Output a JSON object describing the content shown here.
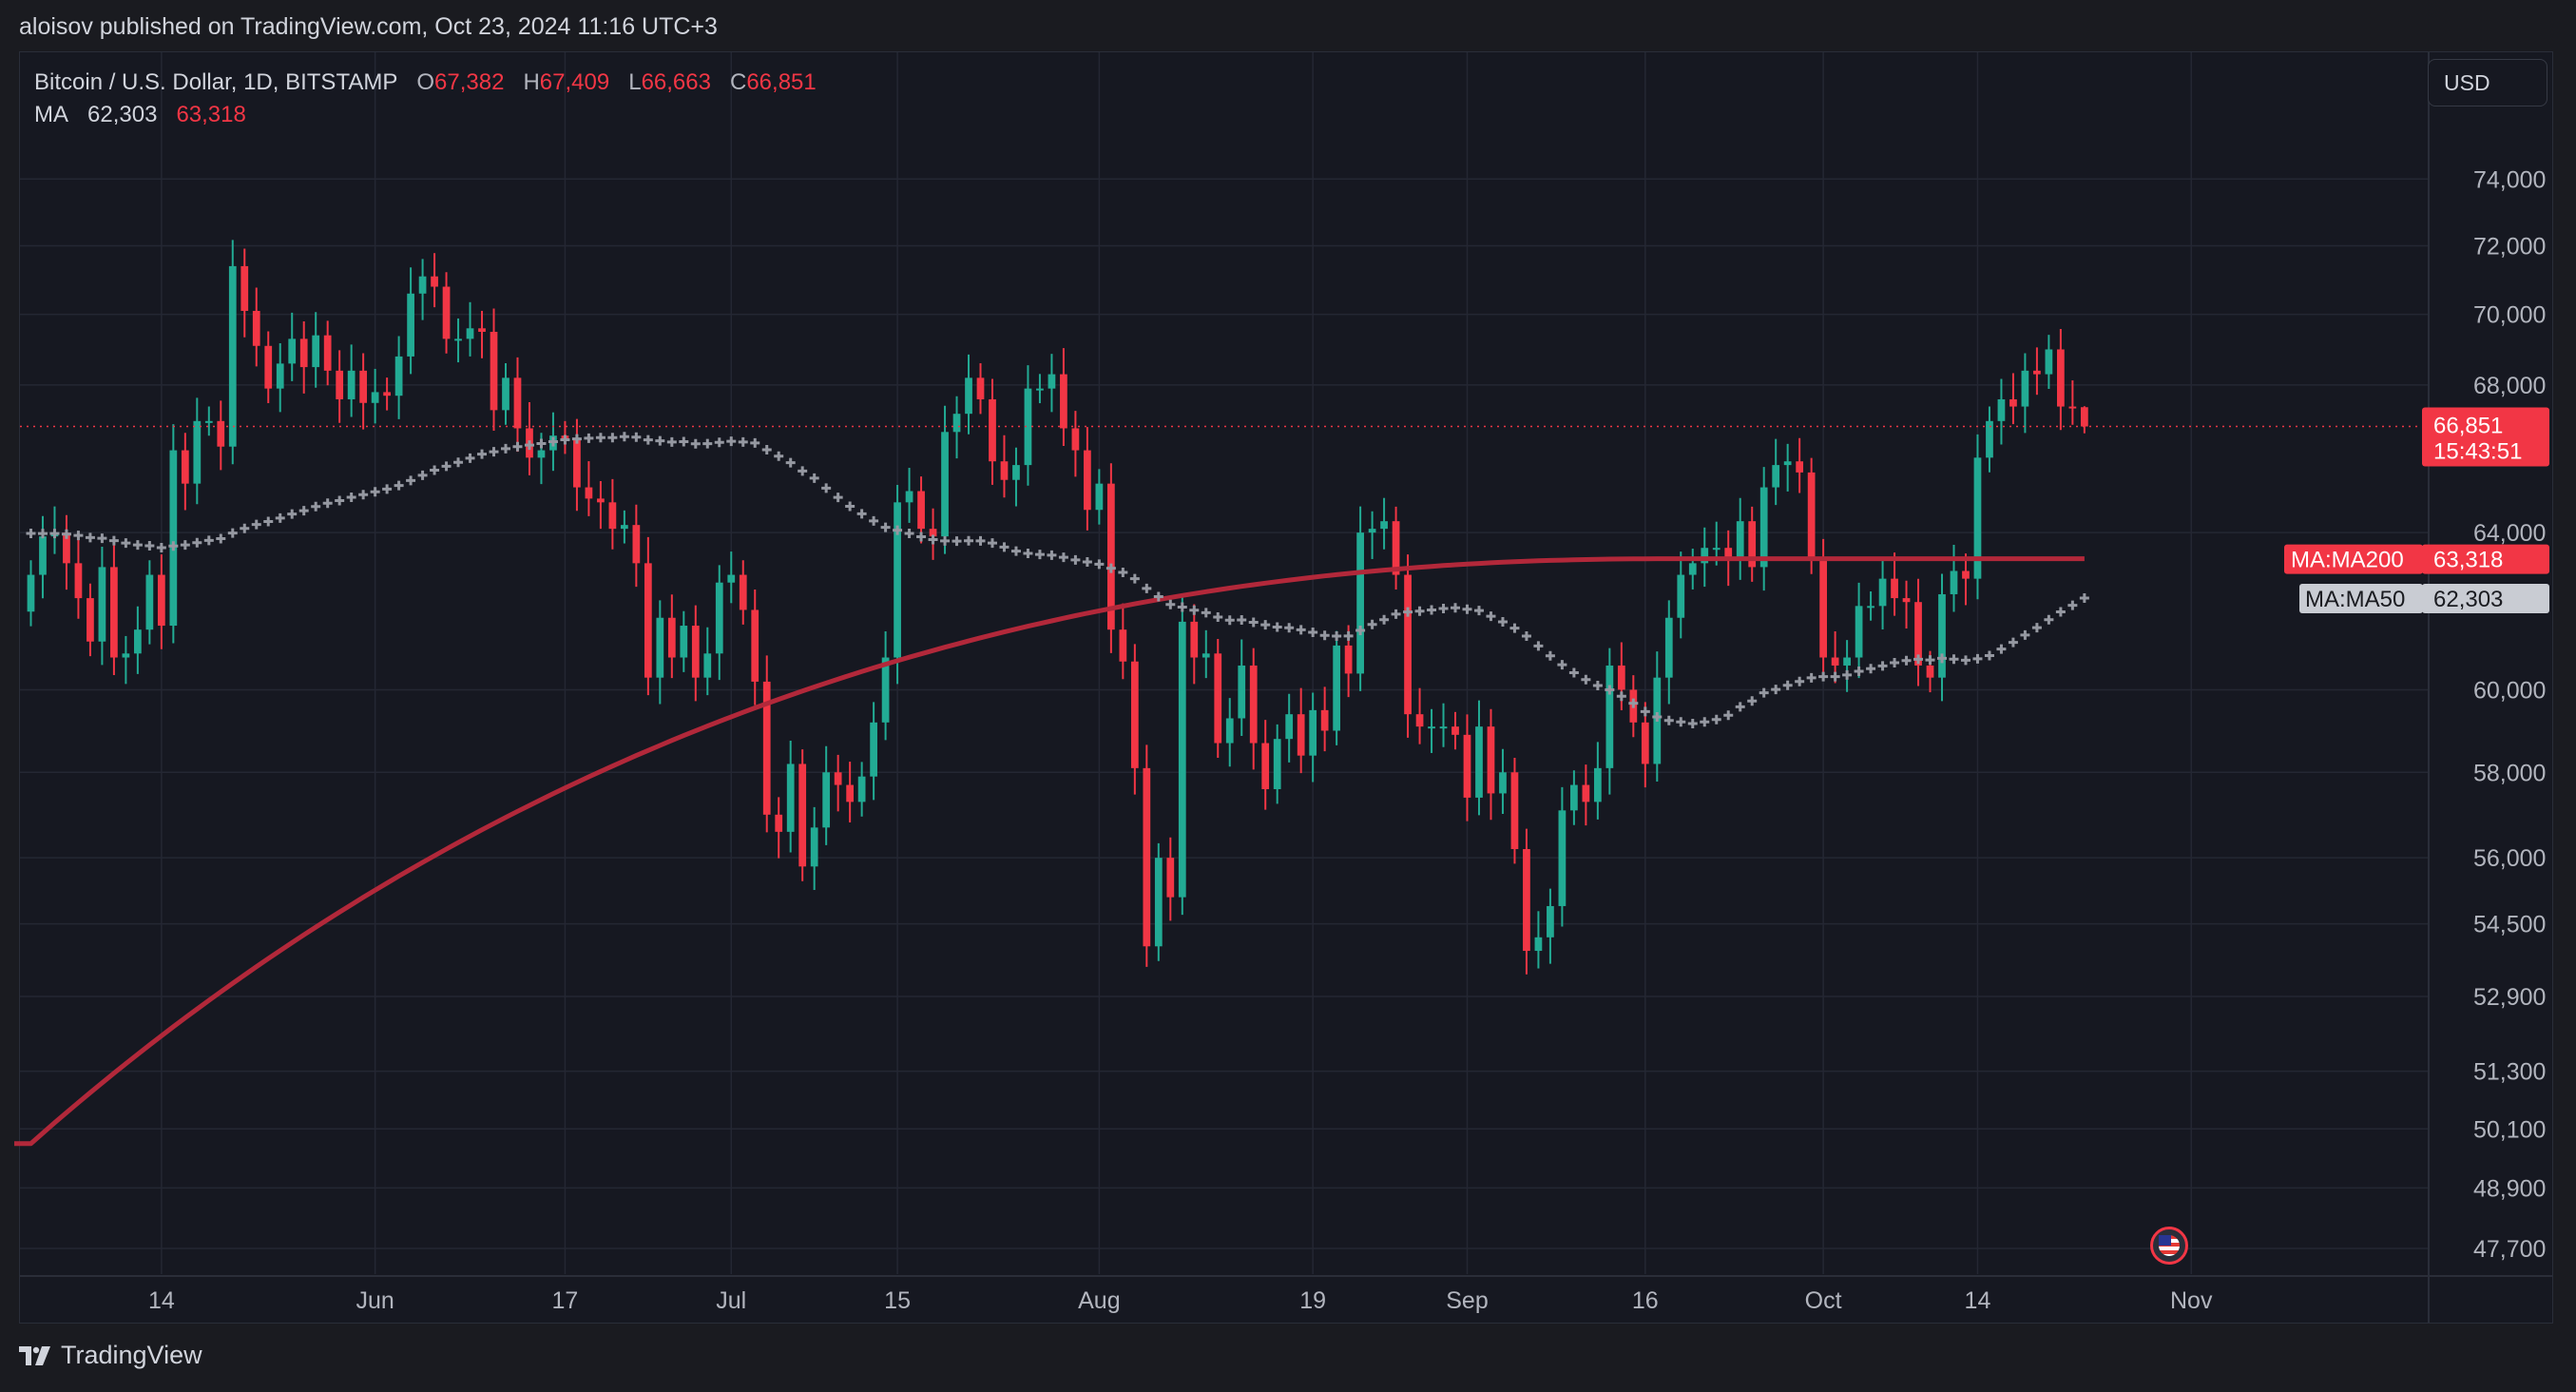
{
  "publisher": "aloisov published on TradingView.com, Oct 23, 2024 11:16 UTC+3",
  "legend": {
    "symbol": "Bitcoin / U.S. Dollar, 1D, BITSTAMP",
    "o_label": "O",
    "o": "67,382",
    "h_label": "H",
    "h": "67,409",
    "l_label": "L",
    "l": "66,663",
    "c_label": "C",
    "c": "66,851",
    "ma_label": "MA",
    "ma50": "62,303",
    "ma200": "63,318"
  },
  "currency": "USD",
  "brand": "TradingView",
  "colors": {
    "up": "#22ab94",
    "down": "#f23645",
    "ma200": "#b2283a",
    "ma50": "#9598a1"
  },
  "chart_data": {
    "type": "candlestick",
    "y_scale": "log",
    "ylim": [
      47200,
      76000
    ],
    "y_ticks": [
      {
        "label": "74,000",
        "value": 74000
      },
      {
        "label": "72,000",
        "value": 72000
      },
      {
        "label": "70,000",
        "value": 70000
      },
      {
        "label": "68,000",
        "value": 68000
      },
      {
        "label": "64,000",
        "value": 64000
      },
      {
        "label": "60,000",
        "value": 60000
      },
      {
        "label": "58,000",
        "value": 58000
      },
      {
        "label": "56,000",
        "value": 56000
      },
      {
        "label": "54,500",
        "value": 54500
      },
      {
        "label": "52,900",
        "value": 52900
      },
      {
        "label": "51,300",
        "value": 51300
      },
      {
        "label": "50,100",
        "value": 50100
      },
      {
        "label": "48,900",
        "value": 48900
      },
      {
        "label": "47,700",
        "value": 47700
      }
    ],
    "x_ticks": [
      {
        "label": "14",
        "date": "2024-05-14"
      },
      {
        "label": "Jun",
        "date": "2024-06-01"
      },
      {
        "label": "17",
        "date": "2024-06-17"
      },
      {
        "label": "Jul",
        "date": "2024-07-01"
      },
      {
        "label": "15",
        "date": "2024-07-15"
      },
      {
        "label": "Aug",
        "date": "2024-08-01"
      },
      {
        "label": "19",
        "date": "2024-08-19"
      },
      {
        "label": "Sep",
        "date": "2024-09-01"
      },
      {
        "label": "16",
        "date": "2024-09-16"
      },
      {
        "label": "Oct",
        "date": "2024-10-01"
      },
      {
        "label": "14",
        "date": "2024-10-14"
      },
      {
        "label": "Nov",
        "date": "2024-11-01"
      }
    ],
    "x_range": [
      "2024-05-02",
      "2024-11-21"
    ],
    "closes": [
      [
        "2024-05-03",
        62900
      ],
      [
        "2024-05-04",
        63900
      ],
      [
        "2024-05-05",
        64000
      ],
      [
        "2024-05-06",
        63200
      ],
      [
        "2024-05-07",
        62300
      ],
      [
        "2024-05-08",
        61200
      ],
      [
        "2024-05-09",
        63100
      ],
      [
        "2024-05-10",
        60800
      ],
      [
        "2024-05-11",
        60900
      ],
      [
        "2024-05-12",
        61500
      ],
      [
        "2024-05-13",
        62900
      ],
      [
        "2024-05-14",
        61600
      ],
      [
        "2024-05-15",
        66200
      ],
      [
        "2024-05-16",
        65300
      ],
      [
        "2024-05-17",
        67000
      ],
      [
        "2024-05-18",
        67000
      ],
      [
        "2024-05-19",
        66300
      ],
      [
        "2024-05-20",
        71400
      ],
      [
        "2024-05-21",
        70100
      ],
      [
        "2024-05-22",
        69100
      ],
      [
        "2024-05-23",
        67900
      ],
      [
        "2024-05-24",
        68600
      ],
      [
        "2024-05-25",
        69300
      ],
      [
        "2024-05-26",
        68500
      ],
      [
        "2024-05-27",
        69400
      ],
      [
        "2024-05-28",
        68400
      ],
      [
        "2024-05-29",
        67600
      ],
      [
        "2024-05-30",
        68400
      ],
      [
        "2024-05-31",
        67500
      ],
      [
        "2024-06-01",
        67800
      ],
      [
        "2024-06-02",
        67700
      ],
      [
        "2024-06-03",
        68800
      ],
      [
        "2024-06-04",
        70600
      ],
      [
        "2024-06-05",
        71100
      ],
      [
        "2024-06-06",
        70800
      ],
      [
        "2024-06-07",
        69300
      ],
      [
        "2024-06-08",
        69300
      ],
      [
        "2024-06-09",
        69600
      ],
      [
        "2024-06-10",
        69500
      ],
      [
        "2024-06-11",
        67300
      ],
      [
        "2024-06-12",
        68200
      ],
      [
        "2024-06-13",
        66800
      ],
      [
        "2024-06-14",
        66000
      ],
      [
        "2024-06-15",
        66200
      ],
      [
        "2024-06-16",
        66600
      ],
      [
        "2024-06-17",
        66500
      ],
      [
        "2024-06-18",
        65200
      ],
      [
        "2024-06-19",
        64900
      ],
      [
        "2024-06-20",
        64800
      ],
      [
        "2024-06-21",
        64100
      ],
      [
        "2024-06-22",
        64200
      ],
      [
        "2024-06-23",
        63200
      ],
      [
        "2024-06-24",
        60300
      ],
      [
        "2024-06-25",
        61800
      ],
      [
        "2024-06-26",
        60800
      ],
      [
        "2024-06-27",
        61600
      ],
      [
        "2024-06-28",
        60300
      ],
      [
        "2024-06-29",
        60900
      ],
      [
        "2024-06-30",
        62700
      ],
      [
        "2024-07-01",
        62900
      ],
      [
        "2024-07-02",
        62000
      ],
      [
        "2024-07-03",
        60200
      ],
      [
        "2024-07-04",
        57000
      ],
      [
        "2024-07-05",
        56600
      ],
      [
        "2024-07-06",
        58200
      ],
      [
        "2024-07-07",
        55800
      ],
      [
        "2024-07-08",
        56700
      ],
      [
        "2024-07-09",
        58000
      ],
      [
        "2024-07-10",
        57700
      ],
      [
        "2024-07-11",
        57300
      ],
      [
        "2024-07-12",
        57900
      ],
      [
        "2024-07-13",
        59200
      ],
      [
        "2024-07-14",
        60800
      ],
      [
        "2024-07-15",
        64800
      ],
      [
        "2024-07-16",
        65100
      ],
      [
        "2024-07-17",
        64100
      ],
      [
        "2024-07-18",
        63900
      ],
      [
        "2024-07-19",
        66700
      ],
      [
        "2024-07-20",
        67200
      ],
      [
        "2024-07-21",
        68200
      ],
      [
        "2024-07-22",
        67600
      ],
      [
        "2024-07-23",
        65900
      ],
      [
        "2024-07-24",
        65400
      ],
      [
        "2024-07-25",
        65800
      ],
      [
        "2024-07-26",
        67900
      ],
      [
        "2024-07-27",
        67900
      ],
      [
        "2024-07-28",
        68300
      ],
      [
        "2024-07-29",
        66800
      ],
      [
        "2024-07-30",
        66200
      ],
      [
        "2024-07-31",
        64600
      ],
      [
        "2024-08-01",
        65300
      ],
      [
        "2024-08-02",
        61500
      ],
      [
        "2024-08-03",
        60700
      ],
      [
        "2024-08-04",
        58100
      ],
      [
        "2024-08-05",
        54000
      ],
      [
        "2024-08-06",
        56000
      ],
      [
        "2024-08-07",
        55100
      ],
      [
        "2024-08-08",
        61700
      ],
      [
        "2024-08-09",
        60800
      ],
      [
        "2024-08-10",
        60900
      ],
      [
        "2024-08-11",
        58700
      ],
      [
        "2024-08-12",
        59300
      ],
      [
        "2024-08-13",
        60600
      ],
      [
        "2024-08-14",
        58700
      ],
      [
        "2024-08-15",
        57600
      ],
      [
        "2024-08-16",
        58800
      ],
      [
        "2024-08-17",
        59400
      ],
      [
        "2024-08-18",
        58400
      ],
      [
        "2024-08-19",
        59500
      ],
      [
        "2024-08-20",
        59000
      ],
      [
        "2024-08-21",
        61100
      ],
      [
        "2024-08-22",
        60400
      ],
      [
        "2024-08-23",
        64000
      ],
      [
        "2024-08-24",
        64100
      ],
      [
        "2024-08-25",
        64300
      ],
      [
        "2024-08-26",
        62900
      ],
      [
        "2024-08-27",
        59400
      ],
      [
        "2024-08-28",
        59100
      ],
      [
        "2024-08-29",
        59100
      ],
      [
        "2024-08-30",
        59100
      ],
      [
        "2024-08-31",
        58900
      ],
      [
        "2024-09-01",
        57400
      ],
      [
        "2024-09-02",
        59100
      ],
      [
        "2024-09-03",
        57500
      ],
      [
        "2024-09-04",
        58000
      ],
      [
        "2024-09-05",
        56200
      ],
      [
        "2024-09-06",
        53900
      ],
      [
        "2024-09-07",
        54200
      ],
      [
        "2024-09-08",
        54900
      ],
      [
        "2024-09-09",
        57100
      ],
      [
        "2024-09-10",
        57700
      ],
      [
        "2024-09-11",
        57300
      ],
      [
        "2024-09-12",
        58100
      ],
      [
        "2024-09-13",
        60600
      ],
      [
        "2024-09-14",
        60000
      ],
      [
        "2024-09-15",
        59200
      ],
      [
        "2024-09-16",
        58200
      ],
      [
        "2024-09-17",
        60300
      ],
      [
        "2024-09-18",
        61800
      ],
      [
        "2024-09-19",
        62900
      ],
      [
        "2024-09-20",
        63200
      ],
      [
        "2024-09-21",
        63600
      ],
      [
        "2024-09-22",
        63600
      ],
      [
        "2024-09-23",
        63300
      ],
      [
        "2024-09-24",
        64300
      ],
      [
        "2024-09-25",
        63100
      ],
      [
        "2024-09-26",
        65200
      ],
      [
        "2024-09-27",
        65800
      ],
      [
        "2024-09-28",
        65900
      ],
      [
        "2024-09-29",
        65600
      ],
      [
        "2024-09-30",
        63300
      ],
      [
        "2024-10-01",
        60800
      ],
      [
        "2024-10-02",
        60600
      ],
      [
        "2024-10-03",
        60800
      ],
      [
        "2024-10-04",
        62100
      ],
      [
        "2024-10-05",
        62100
      ],
      [
        "2024-10-06",
        62800
      ],
      [
        "2024-10-07",
        62300
      ],
      [
        "2024-10-08",
        62200
      ],
      [
        "2024-10-09",
        60600
      ],
      [
        "2024-10-10",
        60300
      ],
      [
        "2024-10-11",
        62400
      ],
      [
        "2024-10-12",
        63000
      ],
      [
        "2024-10-13",
        62800
      ],
      [
        "2024-10-14",
        66000
      ],
      [
        "2024-10-15",
        67000
      ],
      [
        "2024-10-16",
        67600
      ],
      [
        "2024-10-17",
        67400
      ],
      [
        "2024-10-18",
        68400
      ],
      [
        "2024-10-19",
        68300
      ],
      [
        "2024-10-20",
        69000
      ],
      [
        "2024-10-21",
        67400
      ],
      [
        "2024-10-22",
        67382
      ],
      [
        "2024-10-23",
        66851
      ]
    ],
    "last_candle": {
      "date": "2024-10-23",
      "open": 67382,
      "high": 67409,
      "low": 66663,
      "close": 66851
    },
    "series": [
      {
        "name": "MA:MA200",
        "value": 63318,
        "style": "solid"
      },
      {
        "name": "MA:MA50",
        "value": 62303,
        "style": "cross"
      }
    ],
    "ma200_start": [
      "2024-05-02",
      49800
    ],
    "price_line": 66851,
    "price_label": "66,851",
    "countdown": "15:43:51",
    "ma200_label": "MA:MA200",
    "ma200_value_label": "63,318",
    "ma50_label": "MA:MA50",
    "ma50_value_label": "62,303"
  }
}
